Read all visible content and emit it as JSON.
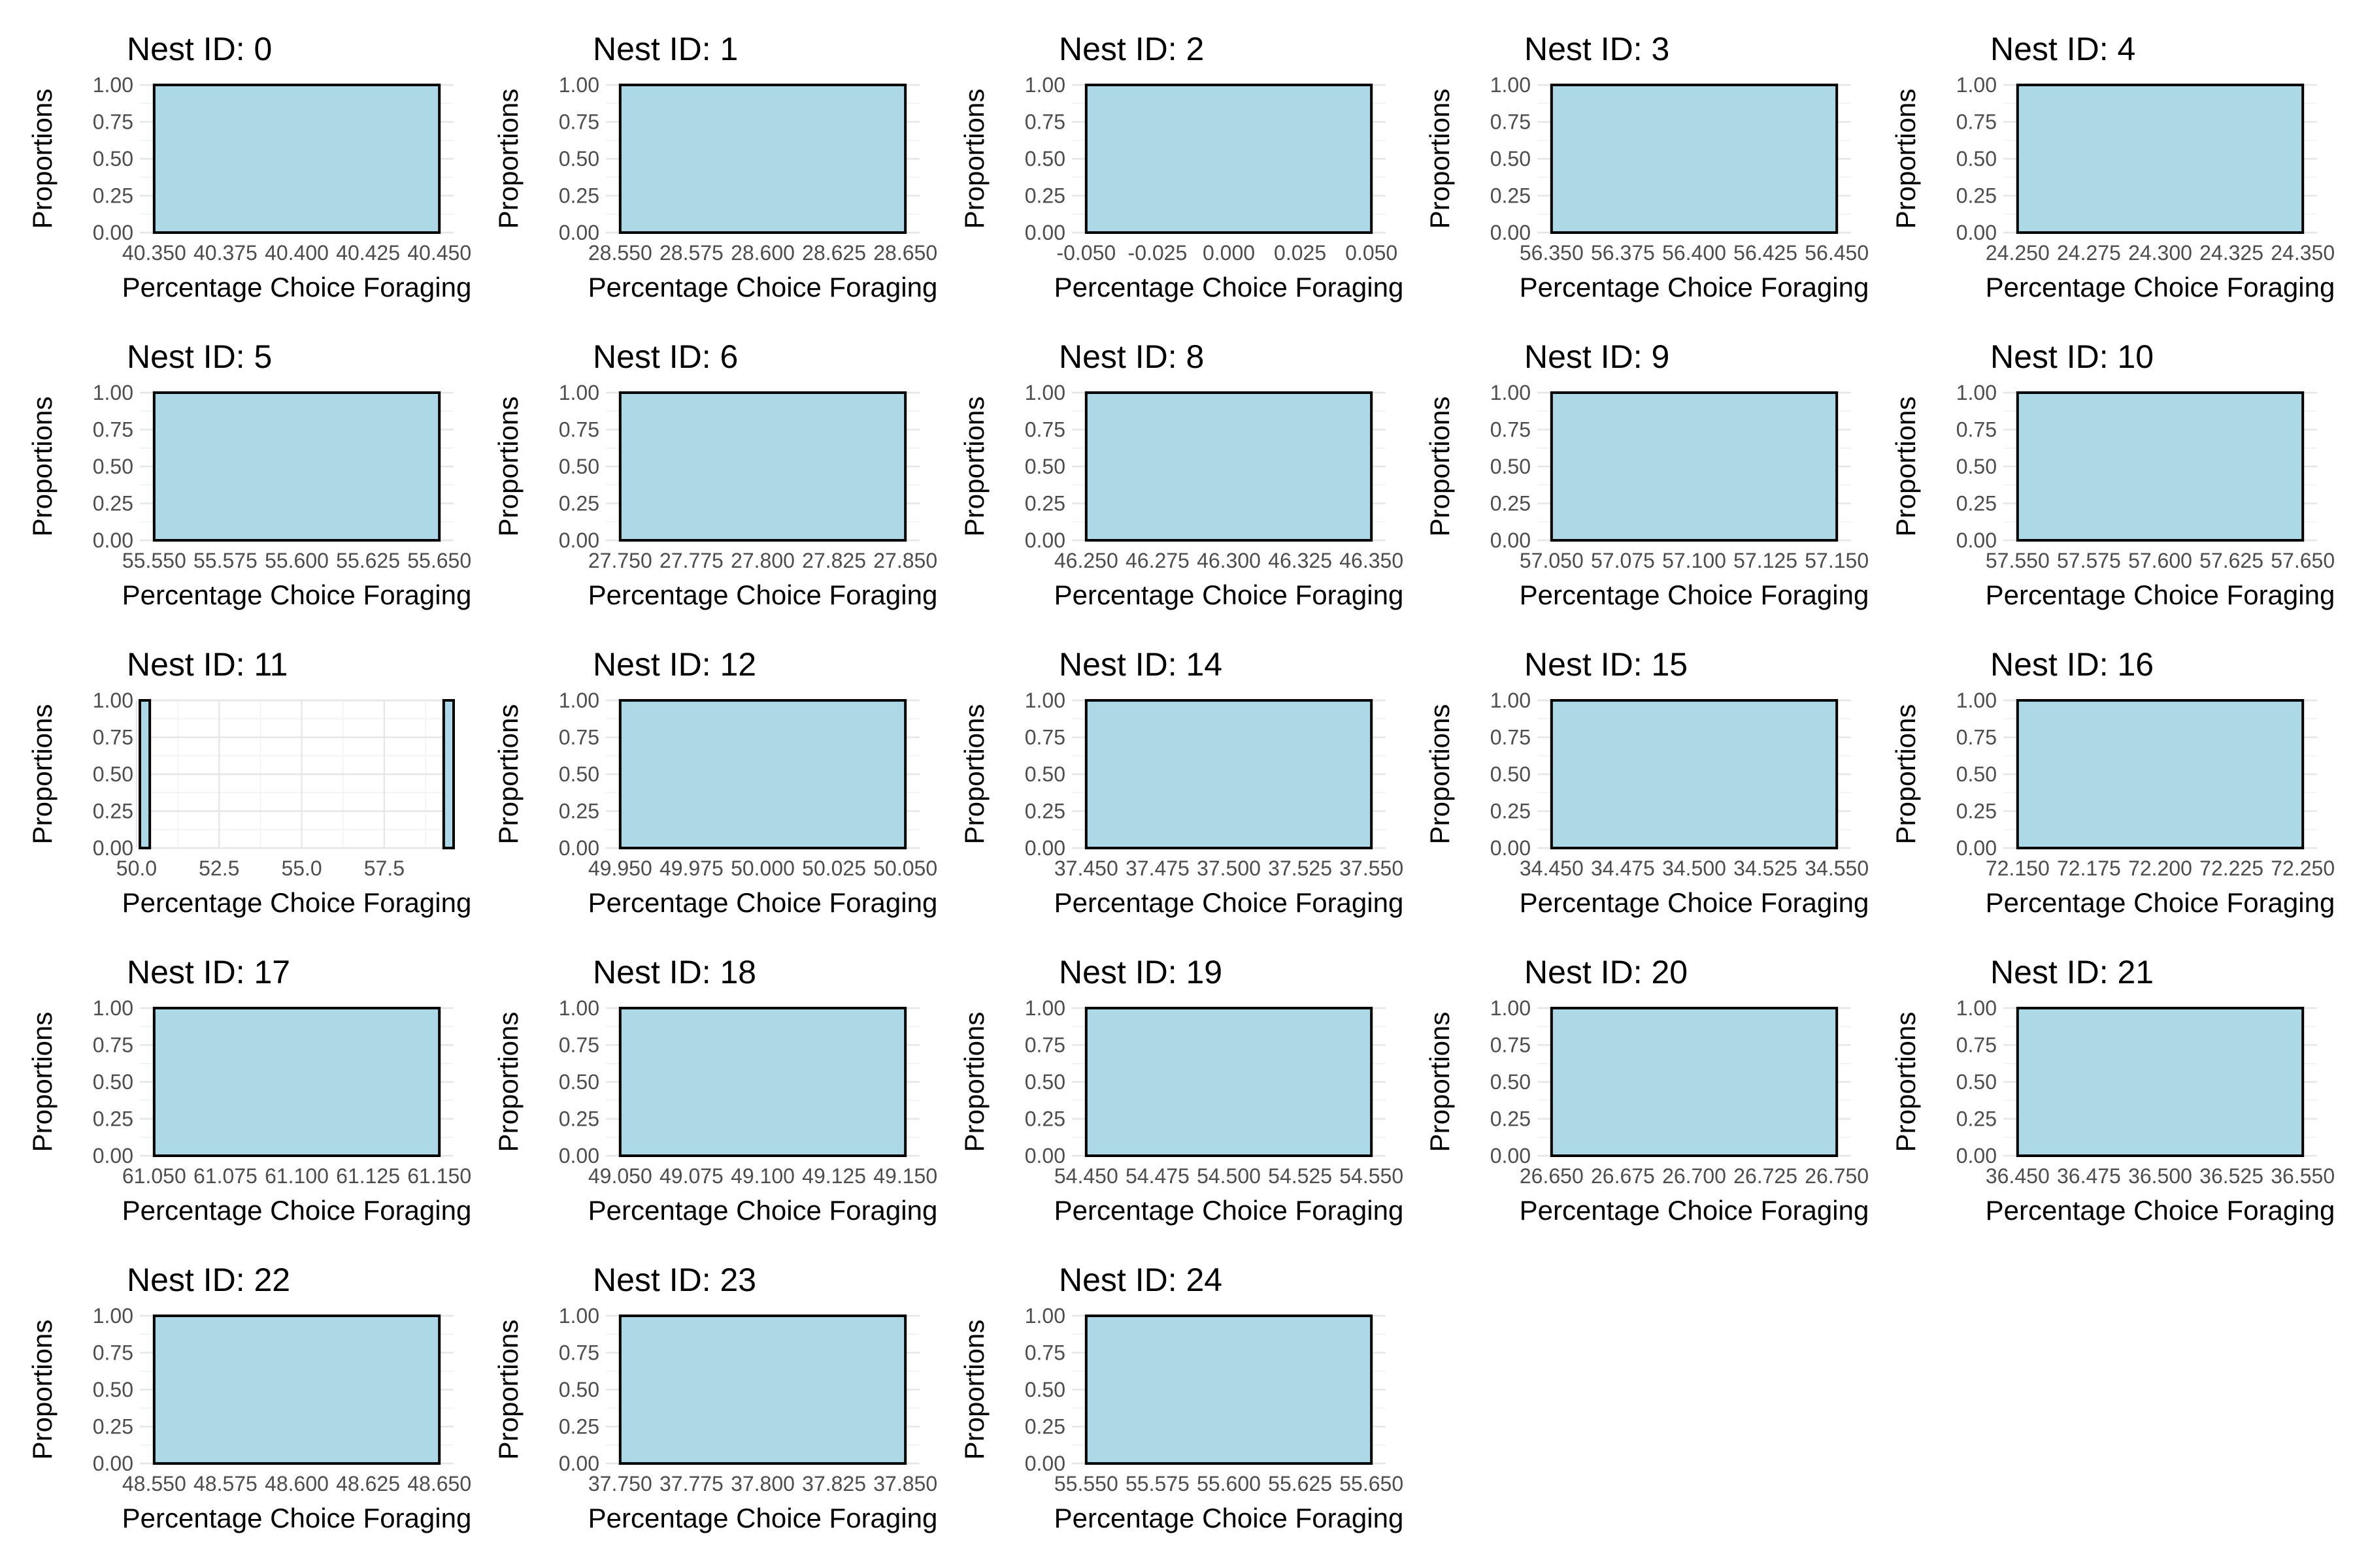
{
  "chart_data": [
    {
      "type": "bar",
      "title": "Nest ID: 0",
      "xlabel": "Percentage Choice Foraging",
      "ylabel": "Proportions",
      "xlim": [
        40.345,
        40.455
      ],
      "ylim": [
        0,
        1
      ],
      "x_ticks": [
        "40.350",
        "40.375",
        "40.400",
        "40.425",
        "40.450"
      ],
      "x_tick_values": [
        40.35,
        40.375,
        40.4,
        40.425,
        40.45
      ],
      "y_ticks": [
        "0.00",
        "0.25",
        "0.50",
        "0.75",
        "1.00"
      ],
      "y_tick_values": [
        0,
        0.25,
        0.5,
        0.75,
        1
      ],
      "bars": [
        {
          "x0": 40.35,
          "x1": 40.45,
          "value": 1
        }
      ]
    },
    {
      "type": "bar",
      "title": "Nest ID: 1",
      "xlabel": "Percentage Choice Foraging",
      "ylabel": "Proportions",
      "xlim": [
        28.545,
        28.655
      ],
      "ylim": [
        0,
        1
      ],
      "x_ticks": [
        "28.550",
        "28.575",
        "28.600",
        "28.625",
        "28.650"
      ],
      "x_tick_values": [
        28.55,
        28.575,
        28.6,
        28.625,
        28.65
      ],
      "y_ticks": [
        "0.00",
        "0.25",
        "0.50",
        "0.75",
        "1.00"
      ],
      "y_tick_values": [
        0,
        0.25,
        0.5,
        0.75,
        1
      ],
      "bars": [
        {
          "x0": 28.55,
          "x1": 28.65,
          "value": 1
        }
      ]
    },
    {
      "type": "bar",
      "title": "Nest ID: 2",
      "xlabel": "Percentage Choice Foraging",
      "ylabel": "Proportions",
      "xlim": [
        -0.055,
        0.055
      ],
      "ylim": [
        0,
        1
      ],
      "x_ticks": [
        "-0.050",
        "-0.025",
        "0.000",
        "0.025",
        "0.050"
      ],
      "x_tick_values": [
        -0.05,
        -0.025,
        0,
        0.025,
        0.05
      ],
      "y_ticks": [
        "0.00",
        "0.25",
        "0.50",
        "0.75",
        "1.00"
      ],
      "y_tick_values": [
        0,
        0.25,
        0.5,
        0.75,
        1
      ],
      "bars": [
        {
          "x0": -0.05,
          "x1": 0.05,
          "value": 1
        }
      ]
    },
    {
      "type": "bar",
      "title": "Nest ID: 3",
      "xlabel": "Percentage Choice Foraging",
      "ylabel": "Proportions",
      "xlim": [
        56.345,
        56.455
      ],
      "ylim": [
        0,
        1
      ],
      "x_ticks": [
        "56.350",
        "56.375",
        "56.400",
        "56.425",
        "56.450"
      ],
      "x_tick_values": [
        56.35,
        56.375,
        56.4,
        56.425,
        56.45
      ],
      "y_ticks": [
        "0.00",
        "0.25",
        "0.50",
        "0.75",
        "1.00"
      ],
      "y_tick_values": [
        0,
        0.25,
        0.5,
        0.75,
        1
      ],
      "bars": [
        {
          "x0": 56.35,
          "x1": 56.45,
          "value": 1
        }
      ]
    },
    {
      "type": "bar",
      "title": "Nest ID: 4",
      "xlabel": "Percentage Choice Foraging",
      "ylabel": "Proportions",
      "xlim": [
        24.245,
        24.355
      ],
      "ylim": [
        0,
        1
      ],
      "x_ticks": [
        "24.250",
        "24.275",
        "24.300",
        "24.325",
        "24.350"
      ],
      "x_tick_values": [
        24.25,
        24.275,
        24.3,
        24.325,
        24.35
      ],
      "y_ticks": [
        "0.00",
        "0.25",
        "0.50",
        "0.75",
        "1.00"
      ],
      "y_tick_values": [
        0,
        0.25,
        0.5,
        0.75,
        1
      ],
      "bars": [
        {
          "x0": 24.25,
          "x1": 24.35,
          "value": 1
        }
      ]
    },
    {
      "type": "bar",
      "title": "Nest ID: 5",
      "xlabel": "Percentage Choice Foraging",
      "ylabel": "Proportions",
      "xlim": [
        55.545,
        55.655
      ],
      "ylim": [
        0,
        1
      ],
      "x_ticks": [
        "55.550",
        "55.575",
        "55.600",
        "55.625",
        "55.650"
      ],
      "x_tick_values": [
        55.55,
        55.575,
        55.6,
        55.625,
        55.65
      ],
      "y_ticks": [
        "0.00",
        "0.25",
        "0.50",
        "0.75",
        "1.00"
      ],
      "y_tick_values": [
        0,
        0.25,
        0.5,
        0.75,
        1
      ],
      "bars": [
        {
          "x0": 55.55,
          "x1": 55.65,
          "value": 1
        }
      ]
    },
    {
      "type": "bar",
      "title": "Nest ID: 6",
      "xlabel": "Percentage Choice Foraging",
      "ylabel": "Proportions",
      "xlim": [
        27.745,
        27.855
      ],
      "ylim": [
        0,
        1
      ],
      "x_ticks": [
        "27.750",
        "27.775",
        "27.800",
        "27.825",
        "27.850"
      ],
      "x_tick_values": [
        27.75,
        27.775,
        27.8,
        27.825,
        27.85
      ],
      "y_ticks": [
        "0.00",
        "0.25",
        "0.50",
        "0.75",
        "1.00"
      ],
      "y_tick_values": [
        0,
        0.25,
        0.5,
        0.75,
        1
      ],
      "bars": [
        {
          "x0": 27.75,
          "x1": 27.85,
          "value": 1
        }
      ]
    },
    {
      "type": "bar",
      "title": "Nest ID: 8",
      "xlabel": "Percentage Choice Foraging",
      "ylabel": "Proportions",
      "xlim": [
        46.245,
        46.355
      ],
      "ylim": [
        0,
        1
      ],
      "x_ticks": [
        "46.250",
        "46.275",
        "46.300",
        "46.325",
        "46.350"
      ],
      "x_tick_values": [
        46.25,
        46.275,
        46.3,
        46.325,
        46.35
      ],
      "y_ticks": [
        "0.00",
        "0.25",
        "0.50",
        "0.75",
        "1.00"
      ],
      "y_tick_values": [
        0,
        0.25,
        0.5,
        0.75,
        1
      ],
      "bars": [
        {
          "x0": 46.25,
          "x1": 46.35,
          "value": 1
        }
      ]
    },
    {
      "type": "bar",
      "title": "Nest ID: 9",
      "xlabel": "Percentage Choice Foraging",
      "ylabel": "Proportions",
      "xlim": [
        57.045,
        57.155
      ],
      "ylim": [
        0,
        1
      ],
      "x_ticks": [
        "57.050",
        "57.075",
        "57.100",
        "57.125",
        "57.150"
      ],
      "x_tick_values": [
        57.05,
        57.075,
        57.1,
        57.125,
        57.15
      ],
      "y_ticks": [
        "0.00",
        "0.25",
        "0.50",
        "0.75",
        "1.00"
      ],
      "y_tick_values": [
        0,
        0.25,
        0.5,
        0.75,
        1
      ],
      "bars": [
        {
          "x0": 57.05,
          "x1": 57.15,
          "value": 1
        }
      ]
    },
    {
      "type": "bar",
      "title": "Nest ID: 10",
      "xlabel": "Percentage Choice Foraging",
      "ylabel": "Proportions",
      "xlim": [
        57.545,
        57.655
      ],
      "ylim": [
        0,
        1
      ],
      "x_ticks": [
        "57.550",
        "57.575",
        "57.600",
        "57.625",
        "57.650"
      ],
      "x_tick_values": [
        57.55,
        57.575,
        57.6,
        57.625,
        57.65
      ],
      "y_ticks": [
        "0.00",
        "0.25",
        "0.50",
        "0.75",
        "1.00"
      ],
      "y_tick_values": [
        0,
        0.25,
        0.5,
        0.75,
        1
      ],
      "bars": [
        {
          "x0": 57.55,
          "x1": 57.65,
          "value": 1
        }
      ]
    },
    {
      "type": "bar",
      "title": "Nest ID: 11",
      "xlabel": "Percentage Choice Foraging",
      "ylabel": "Proportions",
      "xlim": [
        50.1,
        59.6
      ],
      "ylim": [
        0,
        1
      ],
      "x_ticks": [
        "50.0",
        "52.5",
        "55.0",
        "57.5"
      ],
      "x_tick_values": [
        50,
        52.5,
        55,
        57.5
      ],
      "y_ticks": [
        "0.00",
        "0.25",
        "0.50",
        "0.75",
        "1.00"
      ],
      "y_tick_values": [
        0,
        0.25,
        0.5,
        0.75,
        1
      ],
      "bars": [
        {
          "x0": 50.1,
          "x1": 50.4,
          "value": 1
        },
        {
          "x0": 59.3,
          "x1": 59.6,
          "value": 1
        }
      ]
    },
    {
      "type": "bar",
      "title": "Nest ID: 12",
      "xlabel": "Percentage Choice Foraging",
      "ylabel": "Proportions",
      "xlim": [
        49.945,
        50.055
      ],
      "ylim": [
        0,
        1
      ],
      "x_ticks": [
        "49.950",
        "49.975",
        "50.000",
        "50.025",
        "50.050"
      ],
      "x_tick_values": [
        49.95,
        49.975,
        50,
        50.025,
        50.05
      ],
      "y_ticks": [
        "0.00",
        "0.25",
        "0.50",
        "0.75",
        "1.00"
      ],
      "y_tick_values": [
        0,
        0.25,
        0.5,
        0.75,
        1
      ],
      "bars": [
        {
          "x0": 49.95,
          "x1": 50.05,
          "value": 1
        }
      ]
    },
    {
      "type": "bar",
      "title": "Nest ID: 14",
      "xlabel": "Percentage Choice Foraging",
      "ylabel": "Proportions",
      "xlim": [
        37.445,
        37.555
      ],
      "ylim": [
        0,
        1
      ],
      "x_ticks": [
        "37.450",
        "37.475",
        "37.500",
        "37.525",
        "37.550"
      ],
      "x_tick_values": [
        37.45,
        37.475,
        37.5,
        37.525,
        37.55
      ],
      "y_ticks": [
        "0.00",
        "0.25",
        "0.50",
        "0.75",
        "1.00"
      ],
      "y_tick_values": [
        0,
        0.25,
        0.5,
        0.75,
        1
      ],
      "bars": [
        {
          "x0": 37.45,
          "x1": 37.55,
          "value": 1
        }
      ]
    },
    {
      "type": "bar",
      "title": "Nest ID: 15",
      "xlabel": "Percentage Choice Foraging",
      "ylabel": "Proportions",
      "xlim": [
        34.445,
        34.555
      ],
      "ylim": [
        0,
        1
      ],
      "x_ticks": [
        "34.450",
        "34.475",
        "34.500",
        "34.525",
        "34.550"
      ],
      "x_tick_values": [
        34.45,
        34.475,
        34.5,
        34.525,
        34.55
      ],
      "y_ticks": [
        "0.00",
        "0.25",
        "0.50",
        "0.75",
        "1.00"
      ],
      "y_tick_values": [
        0,
        0.25,
        0.5,
        0.75,
        1
      ],
      "bars": [
        {
          "x0": 34.45,
          "x1": 34.55,
          "value": 1
        }
      ]
    },
    {
      "type": "bar",
      "title": "Nest ID: 16",
      "xlabel": "Percentage Choice Foraging",
      "ylabel": "Proportions",
      "xlim": [
        72.145,
        72.255
      ],
      "ylim": [
        0,
        1
      ],
      "x_ticks": [
        "72.150",
        "72.175",
        "72.200",
        "72.225",
        "72.250"
      ],
      "x_tick_values": [
        72.15,
        72.175,
        72.2,
        72.225,
        72.25
      ],
      "y_ticks": [
        "0.00",
        "0.25",
        "0.50",
        "0.75",
        "1.00"
      ],
      "y_tick_values": [
        0,
        0.25,
        0.5,
        0.75,
        1
      ],
      "bars": [
        {
          "x0": 72.15,
          "x1": 72.25,
          "value": 1
        }
      ]
    },
    {
      "type": "bar",
      "title": "Nest ID: 17",
      "xlabel": "Percentage Choice Foraging",
      "ylabel": "Proportions",
      "xlim": [
        61.045,
        61.155
      ],
      "ylim": [
        0,
        1
      ],
      "x_ticks": [
        "61.050",
        "61.075",
        "61.100",
        "61.125",
        "61.150"
      ],
      "x_tick_values": [
        61.05,
        61.075,
        61.1,
        61.125,
        61.15
      ],
      "y_ticks": [
        "0.00",
        "0.25",
        "0.50",
        "0.75",
        "1.00"
      ],
      "y_tick_values": [
        0,
        0.25,
        0.5,
        0.75,
        1
      ],
      "bars": [
        {
          "x0": 61.05,
          "x1": 61.15,
          "value": 1
        }
      ]
    },
    {
      "type": "bar",
      "title": "Nest ID: 18",
      "xlabel": "Percentage Choice Foraging",
      "ylabel": "Proportions",
      "xlim": [
        49.045,
        49.155
      ],
      "ylim": [
        0,
        1
      ],
      "x_ticks": [
        "49.050",
        "49.075",
        "49.100",
        "49.125",
        "49.150"
      ],
      "x_tick_values": [
        49.05,
        49.075,
        49.1,
        49.125,
        49.15
      ],
      "y_ticks": [
        "0.00",
        "0.25",
        "0.50",
        "0.75",
        "1.00"
      ],
      "y_tick_values": [
        0,
        0.25,
        0.5,
        0.75,
        1
      ],
      "bars": [
        {
          "x0": 49.05,
          "x1": 49.15,
          "value": 1
        }
      ]
    },
    {
      "type": "bar",
      "title": "Nest ID: 19",
      "xlabel": "Percentage Choice Foraging",
      "ylabel": "Proportions",
      "xlim": [
        54.445,
        54.555
      ],
      "ylim": [
        0,
        1
      ],
      "x_ticks": [
        "54.450",
        "54.475",
        "54.500",
        "54.525",
        "54.550"
      ],
      "x_tick_values": [
        54.45,
        54.475,
        54.5,
        54.525,
        54.55
      ],
      "y_ticks": [
        "0.00",
        "0.25",
        "0.50",
        "0.75",
        "1.00"
      ],
      "y_tick_values": [
        0,
        0.25,
        0.5,
        0.75,
        1
      ],
      "bars": [
        {
          "x0": 54.45,
          "x1": 54.55,
          "value": 1
        }
      ]
    },
    {
      "type": "bar",
      "title": "Nest ID: 20",
      "xlabel": "Percentage Choice Foraging",
      "ylabel": "Proportions",
      "xlim": [
        26.645,
        26.755
      ],
      "ylim": [
        0,
        1
      ],
      "x_ticks": [
        "26.650",
        "26.675",
        "26.700",
        "26.725",
        "26.750"
      ],
      "x_tick_values": [
        26.65,
        26.675,
        26.7,
        26.725,
        26.75
      ],
      "y_ticks": [
        "0.00",
        "0.25",
        "0.50",
        "0.75",
        "1.00"
      ],
      "y_tick_values": [
        0,
        0.25,
        0.5,
        0.75,
        1
      ],
      "bars": [
        {
          "x0": 26.65,
          "x1": 26.75,
          "value": 1
        }
      ]
    },
    {
      "type": "bar",
      "title": "Nest ID: 21",
      "xlabel": "Percentage Choice Foraging",
      "ylabel": "Proportions",
      "xlim": [
        36.445,
        36.555
      ],
      "ylim": [
        0,
        1
      ],
      "x_ticks": [
        "36.450",
        "36.475",
        "36.500",
        "36.525",
        "36.550"
      ],
      "x_tick_values": [
        36.45,
        36.475,
        36.5,
        36.525,
        36.55
      ],
      "y_ticks": [
        "0.00",
        "0.25",
        "0.50",
        "0.75",
        "1.00"
      ],
      "y_tick_values": [
        0,
        0.25,
        0.5,
        0.75,
        1
      ],
      "bars": [
        {
          "x0": 36.45,
          "x1": 36.55,
          "value": 1
        }
      ]
    },
    {
      "type": "bar",
      "title": "Nest ID: 22",
      "xlabel": "Percentage Choice Foraging",
      "ylabel": "Proportions",
      "xlim": [
        48.545,
        48.655
      ],
      "ylim": [
        0,
        1
      ],
      "x_ticks": [
        "48.550",
        "48.575",
        "48.600",
        "48.625",
        "48.650"
      ],
      "x_tick_values": [
        48.55,
        48.575,
        48.6,
        48.625,
        48.65
      ],
      "y_ticks": [
        "0.00",
        "0.25",
        "0.50",
        "0.75",
        "1.00"
      ],
      "y_tick_values": [
        0,
        0.25,
        0.5,
        0.75,
        1
      ],
      "bars": [
        {
          "x0": 48.55,
          "x1": 48.65,
          "value": 1
        }
      ]
    },
    {
      "type": "bar",
      "title": "Nest ID: 23",
      "xlabel": "Percentage Choice Foraging",
      "ylabel": "Proportions",
      "xlim": [
        37.745,
        37.855
      ],
      "ylim": [
        0,
        1
      ],
      "x_ticks": [
        "37.750",
        "37.775",
        "37.800",
        "37.825",
        "37.850"
      ],
      "x_tick_values": [
        37.75,
        37.775,
        37.8,
        37.825,
        37.85
      ],
      "y_ticks": [
        "0.00",
        "0.25",
        "0.50",
        "0.75",
        "1.00"
      ],
      "y_tick_values": [
        0,
        0.25,
        0.5,
        0.75,
        1
      ],
      "bars": [
        {
          "x0": 37.75,
          "x1": 37.85,
          "value": 1
        }
      ]
    },
    {
      "type": "bar",
      "title": "Nest ID: 24",
      "xlabel": "Percentage Choice Foraging",
      "ylabel": "Proportions",
      "xlim": [
        55.545,
        55.655
      ],
      "ylim": [
        0,
        1
      ],
      "x_ticks": [
        "55.550",
        "55.575",
        "55.600",
        "55.625",
        "55.650"
      ],
      "x_tick_values": [
        55.55,
        55.575,
        55.6,
        55.625,
        55.65
      ],
      "y_ticks": [
        "0.00",
        "0.25",
        "0.50",
        "0.75",
        "1.00"
      ],
      "y_tick_values": [
        0,
        0.25,
        0.5,
        0.75,
        1
      ],
      "bars": [
        {
          "x0": 55.55,
          "x1": 55.65,
          "value": 1
        }
      ]
    }
  ],
  "colors": {
    "bar_fill": "#add8e6",
    "bar_stroke": "#000000",
    "grid": "#e6e6e6"
  }
}
